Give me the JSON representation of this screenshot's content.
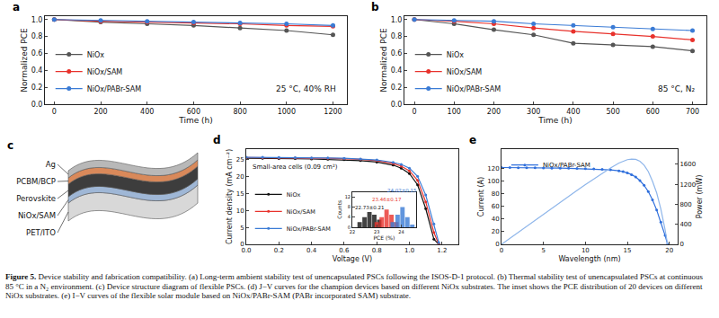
{
  "chart_data": [
    {
      "panel": "a",
      "type": "line",
      "x_label": "Time (h)",
      "y_label": "Normalized PCE",
      "x": [
        0,
        200,
        400,
        600,
        800,
        1000,
        1200
      ],
      "series": [
        {
          "name": "NiOx",
          "color": "#555555",
          "marker": "circle",
          "line_style": "solid",
          "values": [
            1.0,
            0.97,
            0.95,
            0.93,
            0.9,
            0.87,
            0.82
          ]
        },
        {
          "name": "NiOx/SAM",
          "color": "#e8322c",
          "marker": "circle",
          "line_style": "solid",
          "values": [
            1.0,
            0.98,
            0.97,
            0.96,
            0.95,
            0.93,
            0.92
          ]
        },
        {
          "name": "NiOx/PABr-SAM",
          "color": "#3a7bd5",
          "marker": "circle",
          "line_style": "solid",
          "values": [
            1.0,
            0.99,
            0.98,
            0.97,
            0.96,
            0.95,
            0.93
          ]
        }
      ],
      "xlim": [
        -40,
        1260
      ],
      "xticks": [
        0,
        200,
        400,
        600,
        800,
        1000,
        1200
      ],
      "ylim": [
        0,
        1.04
      ],
      "yticks": [
        {
          "value": 0,
          "label": "0.0"
        },
        0.2,
        0.4,
        0.6,
        0.8,
        {
          "value": 1,
          "label": "1.0"
        }
      ],
      "legend": "lower left",
      "annotations": [
        "25 °C, 40% RH"
      ]
    },
    {
      "panel": "b",
      "type": "line",
      "x_label": "Time (h)",
      "y_label": "Normalized PCE",
      "x": [
        0,
        100,
        200,
        300,
        400,
        500,
        600,
        700
      ],
      "series": [
        {
          "name": "NiOx",
          "color": "#555555",
          "marker": "circle",
          "line_style": "solid",
          "values": [
            1.0,
            0.95,
            0.88,
            0.82,
            0.72,
            0.7,
            0.68,
            0.63
          ]
        },
        {
          "name": "NiOx/SAM",
          "color": "#e8322c",
          "marker": "circle",
          "line_style": "solid",
          "values": [
            1.0,
            0.98,
            0.95,
            0.9,
            0.86,
            0.83,
            0.8,
            0.76
          ]
        },
        {
          "name": "NiOx/PABr-SAM",
          "color": "#3a7bd5",
          "marker": "circle",
          "line_style": "solid",
          "values": [
            1.0,
            0.99,
            0.98,
            0.95,
            0.93,
            0.91,
            0.89,
            0.87
          ]
        }
      ],
      "xlim": [
        -25,
        735
      ],
      "xticks": [
        0,
        100,
        200,
        300,
        400,
        500,
        600,
        700
      ],
      "ylim": [
        0,
        1.04
      ],
      "yticks": [
        {
          "value": 0,
          "label": "0.0"
        },
        0.2,
        0.4,
        0.6,
        0.8,
        {
          "value": 1,
          "label": "1.0"
        }
      ],
      "legend": "lower left",
      "annotations": [
        "85 °C, N₂"
      ]
    },
    {
      "panel": "d",
      "type": "line",
      "x_label": "Voltage (V)",
      "y_label": "Current density (mA cm⁻²)",
      "x": [
        0,
        0.1,
        0.2,
        0.3,
        0.4,
        0.5,
        0.6,
        0.7,
        0.8,
        0.9,
        0.95,
        1.0,
        1.05,
        1.1,
        1.15,
        1.18
      ],
      "series": [
        {
          "name": "NiOx",
          "color": "#111111",
          "marker": "circle",
          "line_style": "solid",
          "values": [
            25.3,
            25.3,
            25.25,
            25.2,
            25.1,
            25.0,
            24.9,
            24.6,
            24.2,
            23.3,
            22.4,
            20.8,
            17.5,
            10.5,
            1.5,
            0
          ]
        },
        {
          "name": "NiOx/SAM",
          "color": "#e8322c",
          "marker": "circle",
          "line_style": "solid",
          "values": [
            25.5,
            25.5,
            25.45,
            25.4,
            25.35,
            25.3,
            25.2,
            25.0,
            24.6,
            23.8,
            23.0,
            21.6,
            18.8,
            12.5,
            3.5,
            0
          ]
        },
        {
          "name": "NiOx/PABr-SAM",
          "color": "#3a7bd5",
          "marker": "circle",
          "line_style": "solid",
          "values": [
            25.6,
            25.6,
            25.55,
            25.5,
            25.45,
            25.4,
            25.3,
            25.1,
            24.8,
            24.1,
            23.5,
            22.4,
            20.0,
            14.5,
            6.0,
            0.5
          ]
        }
      ],
      "xlim": [
        0,
        1.3
      ],
      "xticks": [
        {
          "value": 0,
          "label": "0.0"
        },
        0.2,
        0.4,
        0.6,
        0.8,
        {
          "value": 1,
          "label": "1.0"
        },
        1.2
      ],
      "ylim": [
        0,
        28
      ],
      "yticks": [
        0,
        5,
        10,
        15,
        20,
        25
      ],
      "legend": "lower left",
      "annotations": [
        "Small-area cells (0.09 cm²)"
      ],
      "inset": {
        "type": "bar",
        "x_label": "PCE (%)",
        "y_label": "Counts",
        "xlim": [
          22,
          24.6
        ],
        "xticks": [
          22,
          23,
          24
        ],
        "ylim": [
          0,
          14
        ],
        "yticks": [
          0,
          4,
          8,
          12
        ],
        "series": [
          {
            "color": "#111111",
            "label": "22.73±0.21",
            "x": [
              22.3,
              22.5,
              22.7,
              22.9,
              23.1
            ],
            "values": [
              2,
              4,
              6,
              5,
              3
            ]
          },
          {
            "color": "#e8322c",
            "label": "23.46±0.17",
            "x": [
              23.0,
              23.2,
              23.4,
              23.6,
              23.8
            ],
            "values": [
              2,
              4,
              7,
              5,
              2
            ]
          },
          {
            "color": "#3a7bd5",
            "label": "24.02±0.15",
            "x": [
              23.65,
              23.85,
              24.05,
              24.25,
              24.45
            ],
            "values": [
              2,
              5,
              8,
              4,
              1
            ]
          }
        ]
      }
    },
    {
      "panel": "e",
      "type": "line",
      "x_label": "Wavelength (nm)",
      "y_label": "Current (A)",
      "y2_label": "Power (mW)",
      "x": [
        0,
        1,
        2,
        3,
        4,
        5,
        6,
        7,
        8,
        9,
        10,
        11,
        12,
        13,
        14,
        14.5,
        15,
        15.5,
        16,
        16.5,
        17,
        17.5,
        18,
        18.5,
        19,
        19.5,
        19.8
      ],
      "series": [
        {
          "name": "NiOx/PABr-SAM",
          "color": "#2f6fdc",
          "marker": "circle",
          "line_style": "solid",
          "values": [
            121,
            121,
            120.8,
            120.6,
            120.5,
            120.3,
            120.1,
            120,
            119.8,
            119.5,
            119.2,
            118.8,
            118.2,
            117.3,
            115.8,
            114.5,
            112.6,
            109.8,
            106,
            100.5,
            93,
            83,
            70,
            54,
            35,
            14,
            0
          ]
        },
        {
          "axis": "y2",
          "color": "#8fb6ea",
          "marker": "none",
          "line_style": "solid",
          "values": [
            0,
            121,
            241.6,
            361.8,
            482,
            601.5,
            720.6,
            840,
            958.4,
            1075.5,
            1192,
            1306.8,
            1418.4,
            1524.9,
            1621.2,
            1660.3,
            1689,
            1701.9,
            1696,
            1658.3,
            1581,
            1452.5,
            1260,
            1026,
            700,
            294,
            0
          ]
        }
      ],
      "xlim": [
        0,
        21
      ],
      "xticks": [
        0,
        5,
        10,
        15,
        20
      ],
      "ylim": [
        0,
        150
      ],
      "yticks": [
        0,
        20,
        40,
        60,
        80,
        100,
        120
      ],
      "y2lim": [
        0,
        1900
      ],
      "y2ticks": [
        0,
        400,
        800,
        1200,
        1600
      ],
      "legend": "upper left"
    }
  ],
  "diagram": {
    "panel": "c",
    "layers": [
      "Ag",
      "PCBM/BCP",
      "Perovskite",
      "NiOx/SAM",
      "PET/ITO"
    ]
  },
  "caption": {
    "label": "Figure 5.",
    "text": "Device stability and fabrication compatibility. (a) Long-term ambient stability test of unencapsulated PSCs following the ISOS-D-1 protocol. (b) Thermal stability test of unencapsulated PSCs at continuous 85 °C in a N₂ environment. (c) Device structure diagram of flexible PSCs. (d) J−V curves for the champion devices based on different NiOx substrates. The inset shows the PCE distribution of 20 devices on different NiOx substrates. (e) I−V curves of the flexible solar module based on NiOx/PABr-SAM (PABr incorporated SAM) substrate."
  }
}
